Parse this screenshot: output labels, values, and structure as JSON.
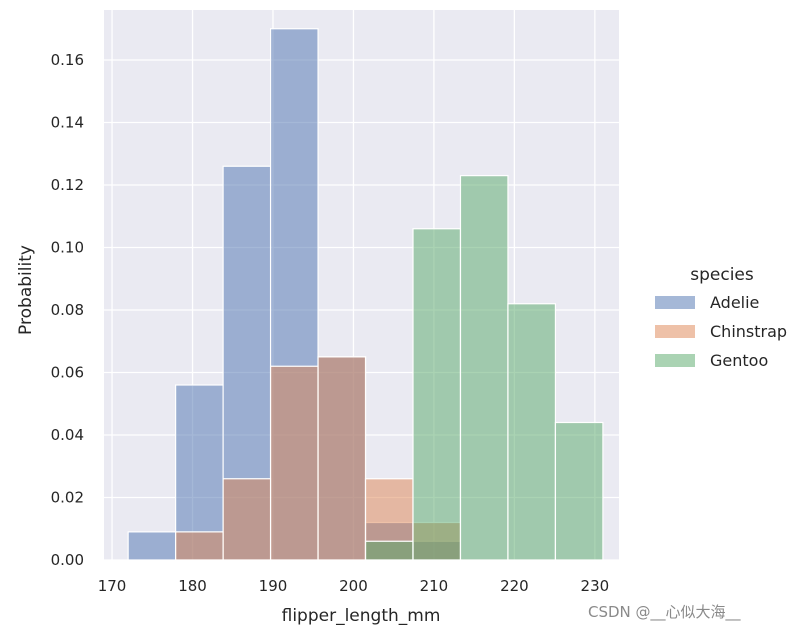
{
  "chart_data": {
    "type": "bar",
    "xlabel": "flipper_length_mm",
    "ylabel": "Probability",
    "xlim": [
      169,
      233
    ],
    "ylim": [
      0,
      0.176
    ],
    "xticks": [
      170,
      180,
      190,
      200,
      210,
      220,
      230
    ],
    "yticks": [
      0.0,
      0.02,
      0.04,
      0.06,
      0.08,
      0.1,
      0.12,
      0.14,
      0.16
    ],
    "bin_edges": [
      172,
      177.9,
      183.8,
      189.7,
      195.6,
      201.5,
      207.4,
      213.3,
      219.2,
      225.1,
      231
    ],
    "legend": {
      "title": "species",
      "position": "right"
    },
    "grid": true,
    "series": [
      {
        "name": "Adelie",
        "color": "#4c72b0",
        "values": [
          0.009,
          0.056,
          0.126,
          0.17,
          0.065,
          0.012,
          0.006,
          0.0,
          0.0,
          0.0
        ]
      },
      {
        "name": "Chinstrap",
        "color": "#dd8452",
        "values": [
          0.0,
          0.009,
          0.026,
          0.062,
          0.065,
          0.026,
          0.012,
          0.0,
          0.0,
          0.0
        ]
      },
      {
        "name": "Gentoo",
        "color": "#55a868",
        "values": [
          0.0,
          0.0,
          0.0,
          0.0,
          0.0,
          0.006,
          0.106,
          0.123,
          0.082,
          0.044
        ]
      }
    ]
  },
  "watermark": "CSDN @__心似大海__"
}
